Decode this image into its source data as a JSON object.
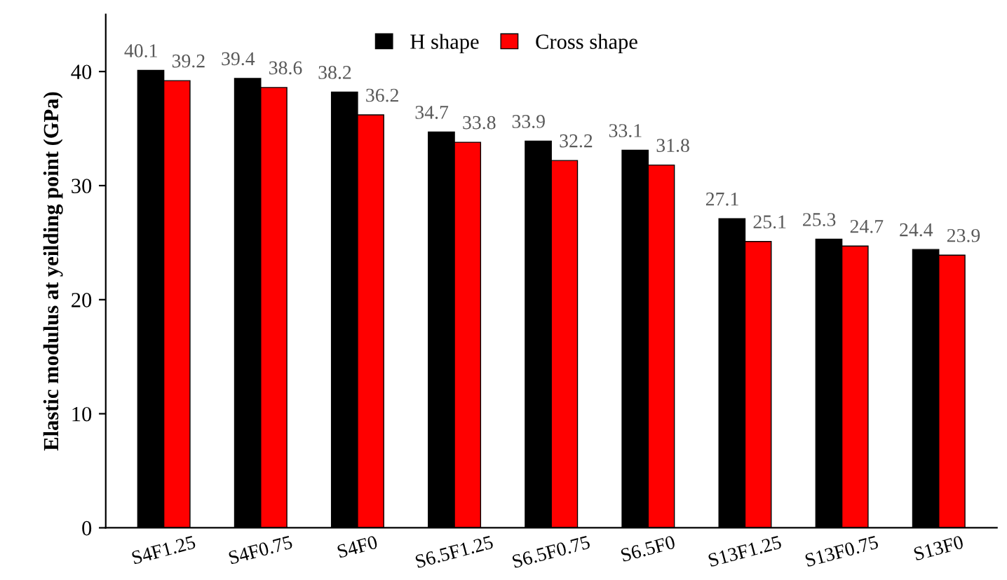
{
  "chart_data": {
    "type": "bar",
    "ylabel": "Elastic modulus at yeilding point (GPa)",
    "categories": [
      "S4F1.25",
      "S4F0.75",
      "S4F0",
      "S6.5F1.25",
      "S6.5F0.75",
      "S6.5F0",
      "S13F1.25",
      "S13F0.75",
      "S13F0"
    ],
    "series": [
      {
        "name": "H shape",
        "color": "#000000",
        "values": [
          40.1,
          39.4,
          38.2,
          34.7,
          33.9,
          33.1,
          27.1,
          25.3,
          24.4
        ]
      },
      {
        "name": "Cross shape",
        "color": "#ff0000",
        "values": [
          39.2,
          38.6,
          36.2,
          33.8,
          32.2,
          31.8,
          25.1,
          24.7,
          23.9
        ]
      }
    ],
    "ylim": [
      0,
      45
    ],
    "yticks": [
      0,
      10,
      20,
      30,
      40
    ],
    "grid": false,
    "legend": "top",
    "data_labels": true
  }
}
